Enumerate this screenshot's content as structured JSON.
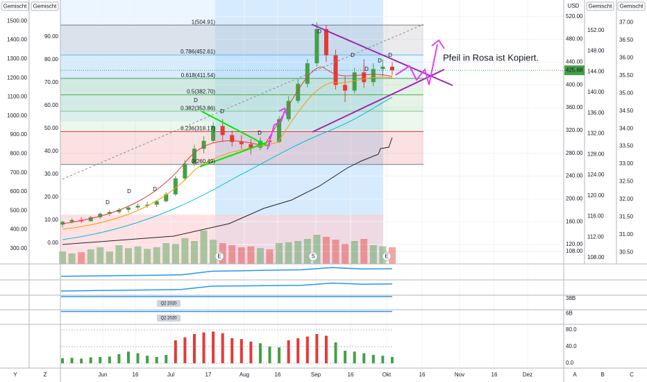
{
  "chart_data": {
    "type": "candlestick",
    "currency": "USD",
    "scale_tags": [
      "Gemischt",
      "Gemischt",
      "Gemischt",
      "Gemischt"
    ],
    "annotation": "Pfeil in Rosa ist Kopiert.",
    "ylim": [
      86,
      549
    ],
    "yticks": [
      {
        "value": 520,
        "label": "520.00"
      },
      {
        "value": 480,
        "label": "480.00"
      },
      {
        "value": 440,
        "label": "440.00"
      },
      {
        "value": 400,
        "label": "400.00"
      },
      {
        "value": 360,
        "label": "360.00"
      },
      {
        "value": 320,
        "label": "320.00"
      },
      {
        "value": 280,
        "label": "280.00"
      },
      {
        "value": 240,
        "label": "240.00"
      },
      {
        "value": 200,
        "label": "200.00"
      },
      {
        "value": 160,
        "label": "160.00"
      },
      {
        "value": 120,
        "label": "120.00"
      },
      {
        "value": 108,
        "label": "108.00"
      }
    ],
    "grid": true,
    "up_color": "#43a047",
    "down_color": "#e53935",
    "last_value": 425.68,
    "open": [
      155,
      160,
      163,
      161,
      168,
      174,
      177,
      181,
      185,
      188,
      190,
      196,
      208,
      236,
      262,
      288,
      302,
      328,
      312,
      300,
      296,
      290,
      302,
      300,
      340,
      372,
      402,
      438,
      498,
      452,
      400,
      390,
      422,
      405,
      428,
      432
    ],
    "high": [
      162,
      166,
      168,
      170,
      176,
      180,
      184,
      188,
      192,
      195,
      198,
      212,
      240,
      268,
      295,
      310,
      335,
      340,
      320,
      312,
      305,
      308,
      310,
      345,
      380,
      410,
      445,
      510,
      505,
      462,
      415,
      430,
      445,
      438,
      445,
      440
    ],
    "low": [
      150,
      157,
      158,
      160,
      165,
      170,
      174,
      176,
      182,
      184,
      186,
      194,
      205,
      232,
      258,
      280,
      298,
      300,
      292,
      288,
      278,
      286,
      292,
      298,
      336,
      368,
      396,
      432,
      440,
      392,
      370,
      385,
      395,
      398,
      415,
      418
    ],
    "close": [
      160,
      163,
      161,
      168,
      174,
      177,
      181,
      185,
      188,
      190,
      196,
      208,
      236,
      262,
      288,
      302,
      328,
      312,
      300,
      296,
      290,
      302,
      300,
      340,
      372,
      402,
      438,
      498,
      452,
      400,
      390,
      422,
      405,
      428,
      432,
      425.68
    ],
    "volume": [
      30,
      25,
      28,
      35,
      40,
      30,
      45,
      38,
      42,
      36,
      40,
      50,
      48,
      62,
      55,
      80,
      58,
      50,
      45,
      40,
      42,
      38,
      35,
      50,
      52,
      55,
      60,
      70,
      65,
      58,
      48,
      55,
      60,
      45,
      42,
      40
    ],
    "fib_levels": [
      {
        "label": "1(504.91)",
        "value": 504.91,
        "color": "#787b86"
      },
      {
        "label": "0.786(452.61)",
        "value": 452.61,
        "color": "#64b5f6"
      },
      {
        "label": "0.618(411.54)",
        "value": 411.54,
        "color": "#43a047"
      },
      {
        "label": "0.5(382.70)",
        "value": 382.7,
        "color": "#4caf50"
      },
      {
        "label": "0.382(353.86)",
        "value": 353.86,
        "color": "#81c784"
      },
      {
        "label": "0.236(318.17)",
        "value": 318.17,
        "color": "#e53935"
      },
      {
        "label": "0(260.49)",
        "value": 260.49,
        "color": "#787b86"
      }
    ],
    "event_markers": [
      "E",
      "S",
      "E"
    ],
    "dividend_marker": "D",
    "period_label": "Q2 2020",
    "time_labels": [
      "Jun",
      "16",
      "Jul",
      "17",
      "Aug",
      "16",
      "Sep",
      "16",
      "Okt",
      "16",
      "Nov",
      "16",
      "Dez"
    ],
    "toolbar_letters": [
      "Y",
      "Z",
      "A",
      "B",
      "C"
    ],
    "left_axes": [
      {
        "ylim": [
          219,
          1611
        ],
        "yticks": [
          {
            "value": 1500,
            "label": "1500.00"
          },
          {
            "value": 1400,
            "label": "1400.00"
          },
          {
            "value": 1300,
            "label": "1300.00"
          },
          {
            "value": 1200,
            "label": "1200.00"
          },
          {
            "value": 1100,
            "label": "1100.00"
          },
          {
            "value": 1000,
            "label": "1000.00"
          },
          {
            "value": 900,
            "label": "900.00"
          },
          {
            "value": 800,
            "label": "800.00"
          },
          {
            "value": 700,
            "label": "700.00"
          },
          {
            "value": 600,
            "label": "600.00"
          },
          {
            "value": 500,
            "label": "500.00"
          },
          {
            "value": 400,
            "label": "400.00"
          },
          {
            "value": 300,
            "label": "300.00"
          }
        ]
      },
      {
        "ylim": [
          -9.1,
          106.1
        ],
        "yticks": [
          {
            "value": 90,
            "label": "90.00"
          },
          {
            "value": 80,
            "label": "80.00"
          },
          {
            "value": 70,
            "label": "70.00"
          },
          {
            "value": 60,
            "label": "60.00"
          },
          {
            "value": 50,
            "label": "50.00"
          },
          {
            "value": 40,
            "label": "40.00"
          },
          {
            "value": 30,
            "label": "30.00"
          },
          {
            "value": 20,
            "label": "20.00"
          },
          {
            "value": 10,
            "label": "10.00"
          },
          {
            "value": 0,
            "label": "0.00"
          }
        ]
      }
    ],
    "right_axes": [
      {
        "ylim": [
          106.8,
          157.9
        ],
        "yticks": [
          {
            "value": 152,
            "label": "152.00"
          },
          {
            "value": 148,
            "label": "148.00"
          },
          {
            "value": 144,
            "label": "144.00"
          },
          {
            "value": 140,
            "label": "140.00"
          },
          {
            "value": 136,
            "label": "136.00"
          },
          {
            "value": 132,
            "label": "132.00"
          },
          {
            "value": 128,
            "label": "128.00"
          },
          {
            "value": 124,
            "label": "124.00"
          },
          {
            "value": 120,
            "label": "120.00"
          },
          {
            "value": 116,
            "label": "116.00"
          },
          {
            "value": 112,
            "label": "112.00"
          },
          {
            "value": 108,
            "label": "108.00"
          }
        ]
      },
      {
        "ylim": [
          30.17,
          37.64
        ],
        "yticks": [
          {
            "value": 37,
            "label": "37.00"
          },
          {
            "value": 36.5,
            "label": "36.50"
          },
          {
            "value": 36,
            "label": "36.00"
          },
          {
            "value": 35.5,
            "label": "35.50"
          },
          {
            "value": 35,
            "label": "35.00"
          },
          {
            "value": 34.5,
            "label": "34.50"
          },
          {
            "value": 34,
            "label": "34.00"
          },
          {
            "value": 33.5,
            "label": "33.50"
          },
          {
            "value": 33,
            "label": "33.00"
          },
          {
            "value": 32.5,
            "label": "32.50"
          },
          {
            "value": 32,
            "label": "32.00"
          },
          {
            "value": 31.5,
            "label": "31.50"
          },
          {
            "value": 31,
            "label": "31.00"
          },
          {
            "value": 30.5,
            "label": "30.50"
          }
        ]
      }
    ],
    "panels": [
      {
        "ylim": [
          0,
          100
        ],
        "color": "#2196f3",
        "values": [
          20,
          22,
          25,
          27,
          30,
          55,
          58,
          62,
          65,
          80,
          70,
          72
        ]
      },
      {
        "ylim": [
          0,
          100
        ],
        "color": "#2196f3",
        "values": [
          25,
          28,
          30,
          33,
          36,
          60,
          62,
          64,
          66,
          82,
          74,
          76
        ]
      },
      {
        "ylim": [
          0,
          40
        ],
        "color": "#2196f3",
        "values": [
          38,
          38
        ],
        "yticks": [
          {
            "value": 38,
            "label": "38B"
          }
        ]
      },
      {
        "ylim": [
          0,
          6.5
        ],
        "color": "#2196f3",
        "values": [
          6,
          6
        ],
        "yticks": [
          {
            "value": 6,
            "label": "6B"
          }
        ]
      }
    ],
    "indicator": {
      "ylim": [
        -11.7,
        93.3
      ],
      "yticks": [
        {
          "value": 80,
          "label": "80.0"
        },
        {
          "value": 40,
          "label": "40.0"
        },
        {
          "value": 0,
          "label": "0.0"
        }
      ],
      "values": [
        12,
        13,
        11,
        14,
        15,
        16,
        22,
        28,
        24,
        18,
        15,
        20,
        55,
        62,
        70,
        74,
        76,
        72,
        60,
        58,
        52,
        48,
        40,
        38,
        55,
        60,
        64,
        70,
        66,
        50,
        30,
        28,
        24,
        20,
        18,
        15
      ],
      "colors": [
        "#43a047",
        "#43a047",
        "#43a047",
        "#43a047",
        "#43a047",
        "#43a047",
        "#43a047",
        "#43a047",
        "#43a047",
        "#43a047",
        "#43a047",
        "#43a047",
        "#e53935",
        "#e53935",
        "#e53935",
        "#e53935",
        "#e53935",
        "#e53935",
        "#e53935",
        "#e53935",
        "#e53935",
        "#43a047",
        "#43a047",
        "#43a047",
        "#e53935",
        "#e53935",
        "#e53935",
        "#e53935",
        "#e53935",
        "#43a047",
        "#43a047",
        "#43a047",
        "#43a047",
        "#43a047",
        "#43a047",
        "#43a047"
      ]
    }
  }
}
